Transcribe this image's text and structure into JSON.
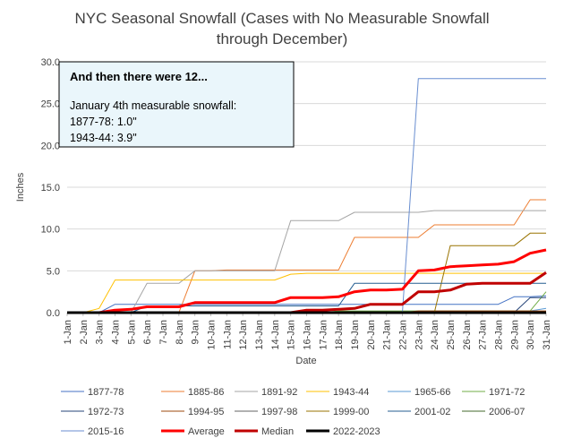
{
  "chart_data": {
    "type": "line",
    "title": "NYC Seasonal Snowfall (Cases with No Measurable Snowfall through December)",
    "title_lines": [
      "NYC Seasonal Snowfall (Cases with No Measurable Snowfall",
      "through December)"
    ],
    "xlabel": "Date",
    "ylabel": "Inches",
    "ylim": [
      0,
      30
    ],
    "yticks": [
      "0.0",
      "5.0",
      "10.0",
      "15.0",
      "20.0",
      "25.0",
      "30.0"
    ],
    "grid": "horizontal",
    "legend_position": "bottom",
    "categories": [
      "1-Jan",
      "2-Jan",
      "3-Jan",
      "4-Jan",
      "5-Jan",
      "6-Jan",
      "7-Jan",
      "8-Jan",
      "9-Jan",
      "10-Jan",
      "11-Jan",
      "12-Jan",
      "13-Jan",
      "14-Jan",
      "15-Jan",
      "16-Jan",
      "17-Jan",
      "18-Jan",
      "19-Jan",
      "20-Jan",
      "21-Jan",
      "22-Jan",
      "23-Jan",
      "24-Jan",
      "25-Jan",
      "26-Jan",
      "27-Jan",
      "28-Jan",
      "29-Jan",
      "30-Jan",
      "31-Jan"
    ],
    "annotation": {
      "title": "And then there were 12...",
      "lines": [
        "January 4th measurable snowfall:",
        "1877-78: 1.0\"",
        "1943-44: 3.9\""
      ]
    },
    "series": [
      {
        "name": "1877-78",
        "color": "#4472c4",
        "width": 1,
        "values": [
          0,
          0,
          0,
          1.0,
          1.0,
          1.0,
          1.0,
          1.0,
          1.0,
          1.0,
          1.0,
          1.0,
          1.0,
          1.0,
          1.0,
          1.0,
          1.0,
          1.0,
          1.0,
          1.0,
          1.0,
          1.0,
          1.0,
          1.0,
          1.0,
          1.0,
          1.0,
          1.0,
          1.9,
          1.9,
          2.0
        ]
      },
      {
        "name": "1885-86",
        "color": "#ed7d31",
        "width": 1,
        "values": [
          0,
          0,
          0,
          0,
          0,
          0,
          0,
          0,
          5.0,
          5.0,
          5.1,
          5.1,
          5.1,
          5.1,
          5.1,
          5.1,
          5.1,
          5.1,
          9.0,
          9.0,
          9.0,
          9.0,
          9.0,
          10.5,
          10.5,
          10.5,
          10.5,
          10.5,
          10.5,
          13.5,
          13.5
        ]
      },
      {
        "name": "1891-92",
        "color": "#a5a5a5",
        "width": 1,
        "values": [
          0,
          0,
          0,
          0,
          0,
          3.5,
          3.5,
          3.5,
          5.0,
          5.0,
          5.0,
          5.0,
          5.0,
          5.0,
          11.0,
          11.0,
          11.0,
          11.0,
          12.0,
          12.0,
          12.0,
          12.0,
          12.0,
          12.2,
          12.2,
          12.2,
          12.2,
          12.2,
          12.2,
          12.2,
          12.2
        ]
      },
      {
        "name": "1943-44",
        "color": "#ffc000",
        "width": 1,
        "values": [
          0,
          0,
          0.5,
          3.9,
          3.9,
          3.9,
          3.9,
          3.9,
          3.9,
          3.9,
          3.9,
          3.9,
          3.9,
          3.9,
          4.6,
          4.7,
          4.7,
          4.7,
          4.7,
          4.7,
          4.7,
          4.7,
          4.7,
          4.7,
          4.7,
          4.7,
          4.7,
          4.7,
          4.7,
          4.7,
          4.7
        ]
      },
      {
        "name": "1965-66",
        "color": "#5b9bd5",
        "width": 1,
        "values": [
          0,
          0,
          0,
          0,
          0,
          0,
          0,
          0,
          0,
          0,
          0,
          0,
          0,
          0,
          0,
          0,
          0,
          0,
          0,
          0,
          0,
          0,
          0.2,
          0.2,
          0.2,
          0.2,
          0.2,
          0.2,
          0.2,
          0.2,
          0.5
        ]
      },
      {
        "name": "1971-72",
        "color": "#70ad47",
        "width": 1,
        "values": [
          0,
          0,
          0,
          0,
          0,
          0,
          0,
          0,
          0,
          0,
          0,
          0,
          0,
          0,
          0,
          0,
          0,
          0.2,
          0.2,
          0.2,
          0.2,
          0.2,
          0.2,
          0.2,
          0.2,
          0.2,
          0.2,
          0.2,
          0.2,
          0.2,
          2.5
        ]
      },
      {
        "name": "1972-73",
        "color": "#264478",
        "width": 1,
        "values": [
          0,
          0,
          0,
          0,
          0,
          0,
          0,
          0,
          0,
          0,
          0,
          0,
          0,
          0,
          0,
          0,
          0,
          0,
          0,
          0,
          0,
          0,
          0,
          0,
          0,
          0,
          0,
          0,
          0,
          1.8,
          1.8
        ]
      },
      {
        "name": "1994-95",
        "color": "#9e480e",
        "width": 1,
        "values": [
          0,
          0,
          0,
          0,
          0,
          0,
          0,
          0,
          0,
          0,
          0,
          0,
          0,
          0,
          0,
          0,
          0,
          0,
          0,
          0,
          0,
          0,
          0.2,
          0.2,
          0.2,
          0.2,
          0.2,
          0.2,
          0.2,
          0.2,
          0.2
        ]
      },
      {
        "name": "1997-98",
        "color": "#636363",
        "width": 1,
        "values": [
          0,
          0,
          0,
          0,
          0,
          0,
          0,
          0,
          0,
          0,
          0,
          0,
          0,
          0,
          0,
          0,
          0,
          0,
          0,
          0,
          0,
          0,
          0,
          0,
          0,
          0,
          0,
          0,
          0,
          0,
          0
        ]
      },
      {
        "name": "1999-00",
        "color": "#997300",
        "width": 1,
        "values": [
          0,
          0,
          0,
          0,
          0,
          0,
          0,
          0,
          0,
          0,
          0,
          0,
          0,
          0,
          0,
          0,
          0,
          0,
          0,
          0,
          0,
          0,
          0,
          0,
          8.0,
          8.0,
          8.0,
          8.0,
          8.0,
          9.5,
          9.5
        ]
      },
      {
        "name": "2001-02",
        "color": "#255e91",
        "width": 1,
        "values": [
          0,
          0,
          0,
          0,
          0,
          0.8,
          0.8,
          0.8,
          0.8,
          0.8,
          0.8,
          0.8,
          0.8,
          0.8,
          0.8,
          0.8,
          0.8,
          0.8,
          3.5,
          3.5,
          3.5,
          3.5,
          3.5,
          3.5,
          3.5,
          3.5,
          3.5,
          3.5,
          3.5,
          3.5,
          3.5
        ]
      },
      {
        "name": "2006-07",
        "color": "#43682b",
        "width": 1,
        "values": [
          0,
          0,
          0,
          0,
          0,
          0,
          0,
          0,
          0,
          0,
          0,
          0,
          0,
          0,
          0,
          0,
          0,
          0,
          0,
          0,
          0,
          0,
          0,
          0,
          0,
          0,
          0,
          0,
          0,
          0,
          0
        ]
      },
      {
        "name": "2015-16",
        "color": "#698ed0",
        "width": 1,
        "values": [
          0,
          0,
          0,
          0,
          0,
          0,
          0,
          0,
          0,
          0,
          0,
          0,
          0,
          0,
          0,
          0,
          0,
          0,
          0,
          0,
          0,
          0,
          28.0,
          28.0,
          28.0,
          28.0,
          28.0,
          28.0,
          28.0,
          28.0,
          28.0
        ]
      },
      {
        "name": "Average",
        "color": "#ff0000",
        "width": 3,
        "values": [
          0,
          0,
          0,
          0.3,
          0.4,
          0.7,
          0.7,
          0.7,
          1.2,
          1.2,
          1.2,
          1.2,
          1.2,
          1.2,
          1.8,
          1.8,
          1.8,
          1.9,
          2.5,
          2.7,
          2.7,
          2.8,
          5.0,
          5.1,
          5.5,
          5.6,
          5.7,
          5.8,
          6.1,
          7.1,
          7.5
        ]
      },
      {
        "name": "Median",
        "color": "#c00000",
        "width": 3,
        "values": [
          0,
          0,
          0,
          0,
          0,
          0,
          0,
          0,
          0,
          0,
          0,
          0,
          0,
          0,
          0,
          0.3,
          0.3,
          0.4,
          0.5,
          1.0,
          1.0,
          1.0,
          2.5,
          2.5,
          2.7,
          3.4,
          3.5,
          3.5,
          3.5,
          3.5,
          4.8
        ]
      },
      {
        "name": "2022-2023",
        "color": "#000000",
        "width": 3,
        "values": [
          0,
          0,
          0,
          0,
          0,
          0,
          0,
          0,
          0,
          0,
          0,
          0,
          0,
          0,
          0,
          0,
          0,
          0,
          0,
          0,
          0,
          0,
          0,
          0,
          0,
          0,
          0,
          0,
          0,
          0,
          0
        ]
      }
    ]
  }
}
